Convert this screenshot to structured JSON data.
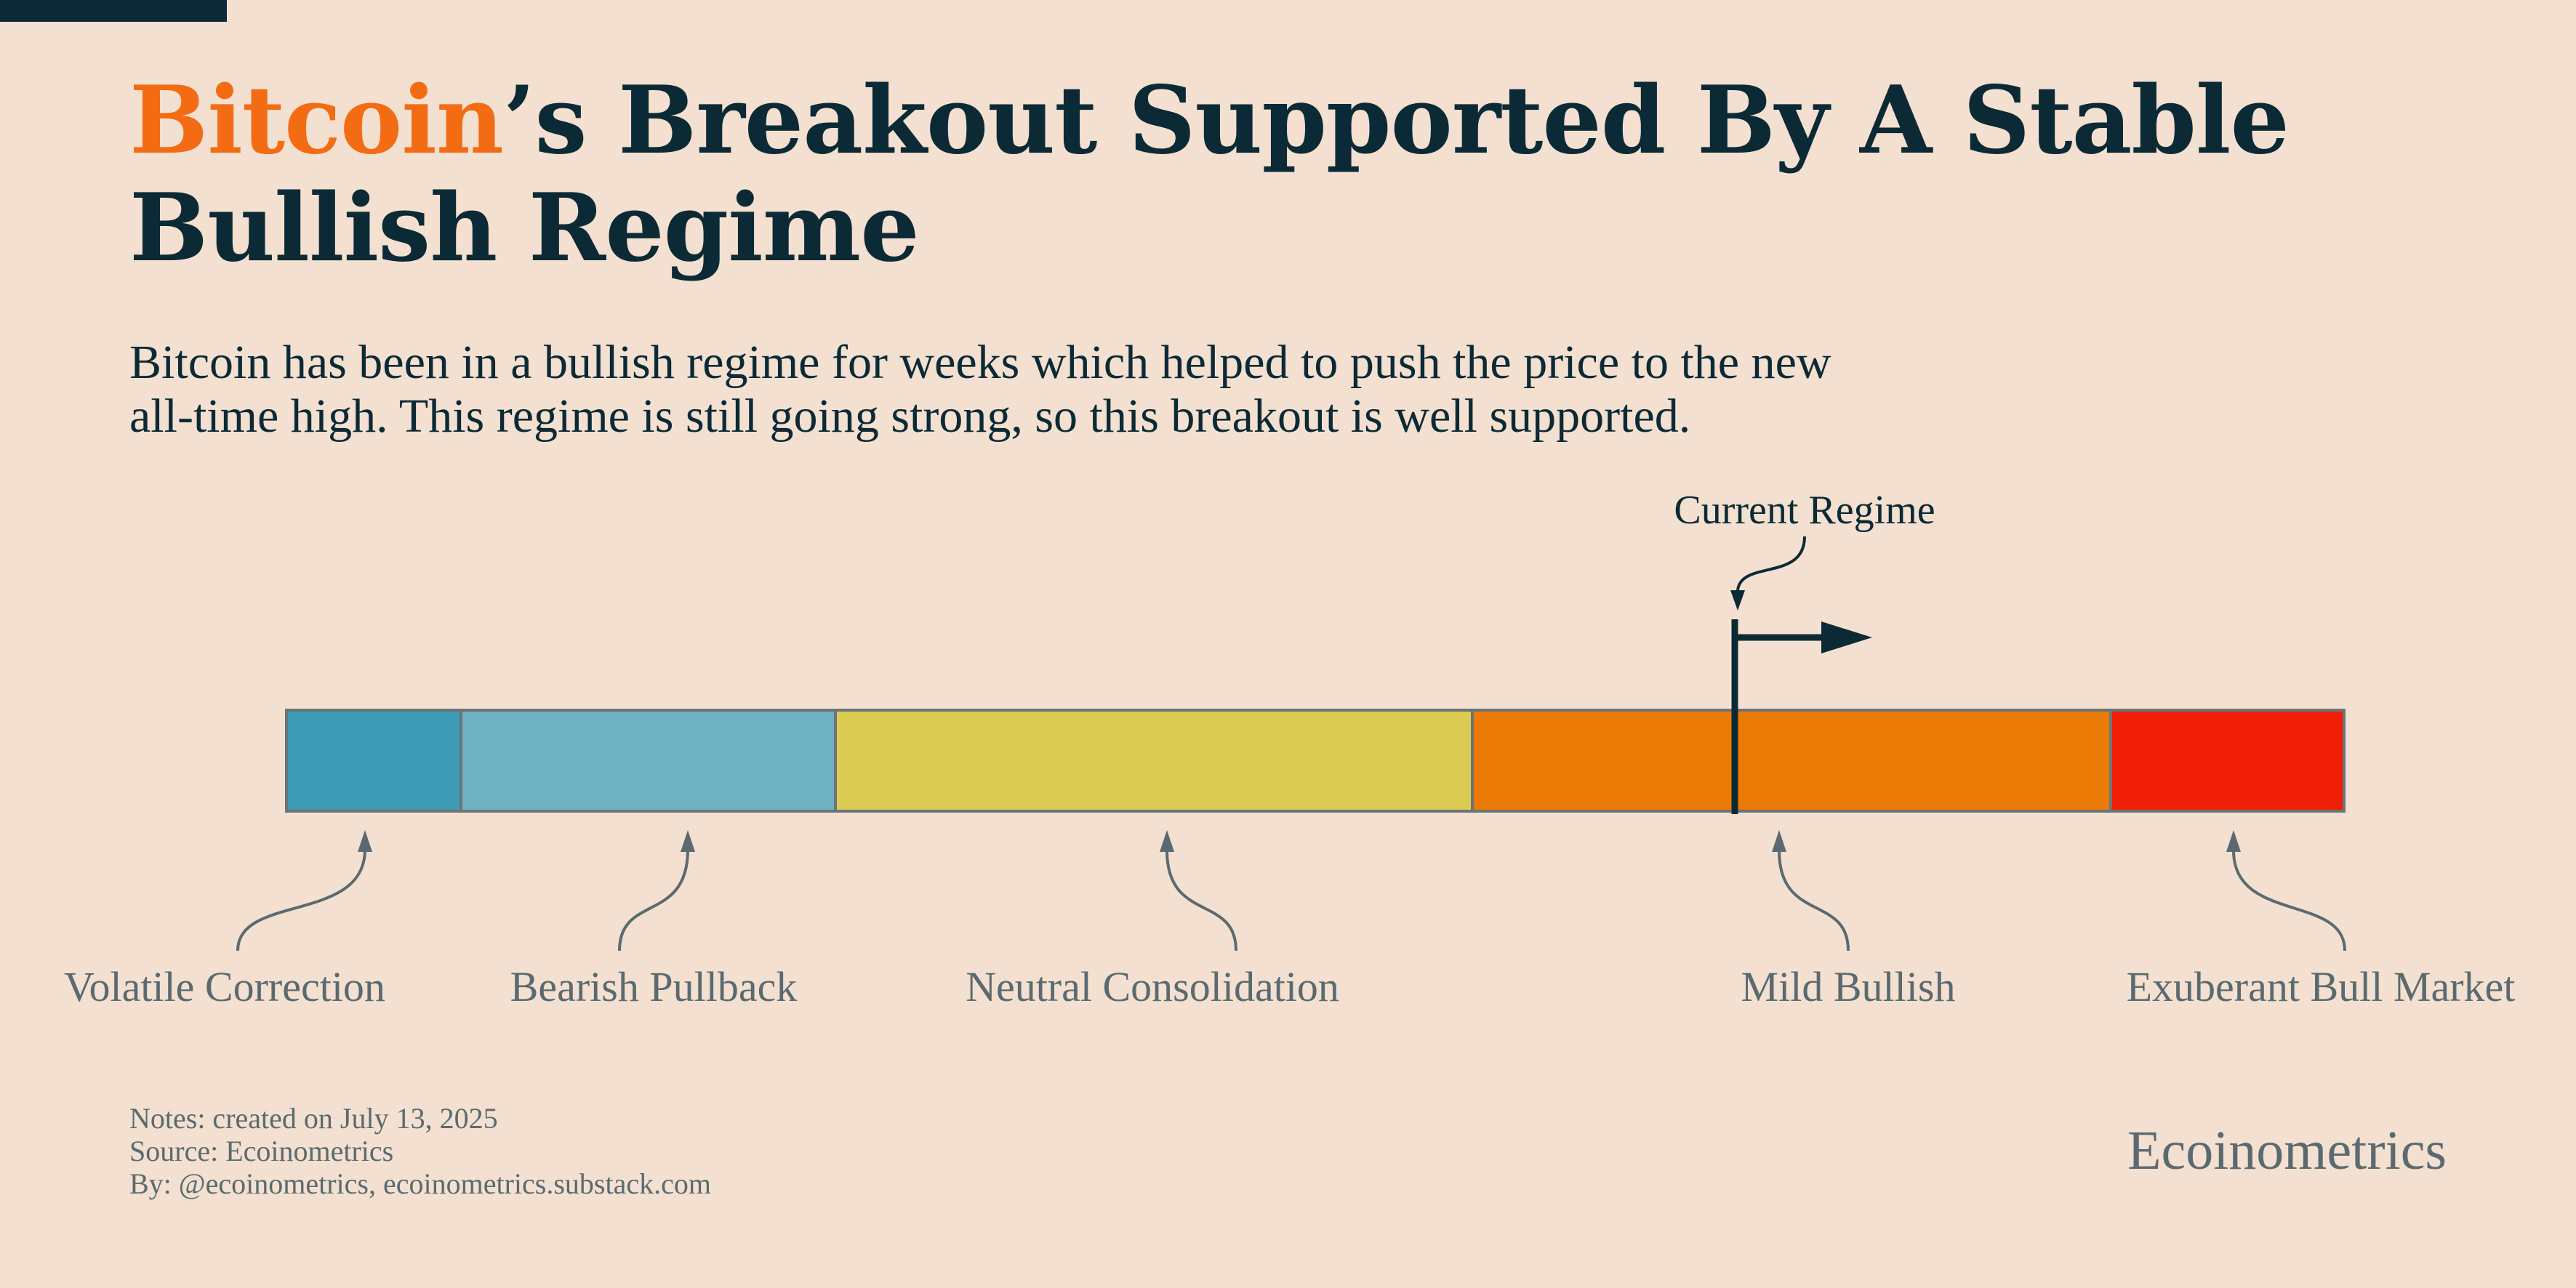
{
  "title": {
    "accent": "Bitcoin",
    "rest_line1": "’s Breakout Supported By A Stable",
    "line2": "Bullish Regime"
  },
  "subtitle": {
    "line1": "Bitcoin has been in a bullish regime for weeks which helped to push the price to the new",
    "line2": "all-time high. This regime is still going strong, so this breakout is well supported."
  },
  "regimes": [
    {
      "label": "Volatile Correction",
      "color": "#3d9ab5"
    },
    {
      "label": "Bearish Pullback",
      "color": "#6eb1c2"
    },
    {
      "label": "Neutral Consolidation",
      "color": "#dccb52"
    },
    {
      "label": "Mild Bullish",
      "color": "#ec7a07"
    },
    {
      "label": "Exuberant Bull Market",
      "color": "#f01e05"
    }
  ],
  "current_regime": {
    "label": "Current Regime",
    "regime": "Mild Bullish"
  },
  "notes": {
    "line1": "Notes: created on July 13, 2025",
    "line2": "Source: Ecoinometrics",
    "line3": "By: @ecoinometrics, ecoinometrics.substack.com"
  },
  "brand": "Ecoinometrics",
  "colors": {
    "background": "#f3e0d0",
    "dark": "#0c2a36",
    "accent": "#f36c14",
    "muted": "#5a6a70",
    "bar_border": "#6b7478"
  }
}
